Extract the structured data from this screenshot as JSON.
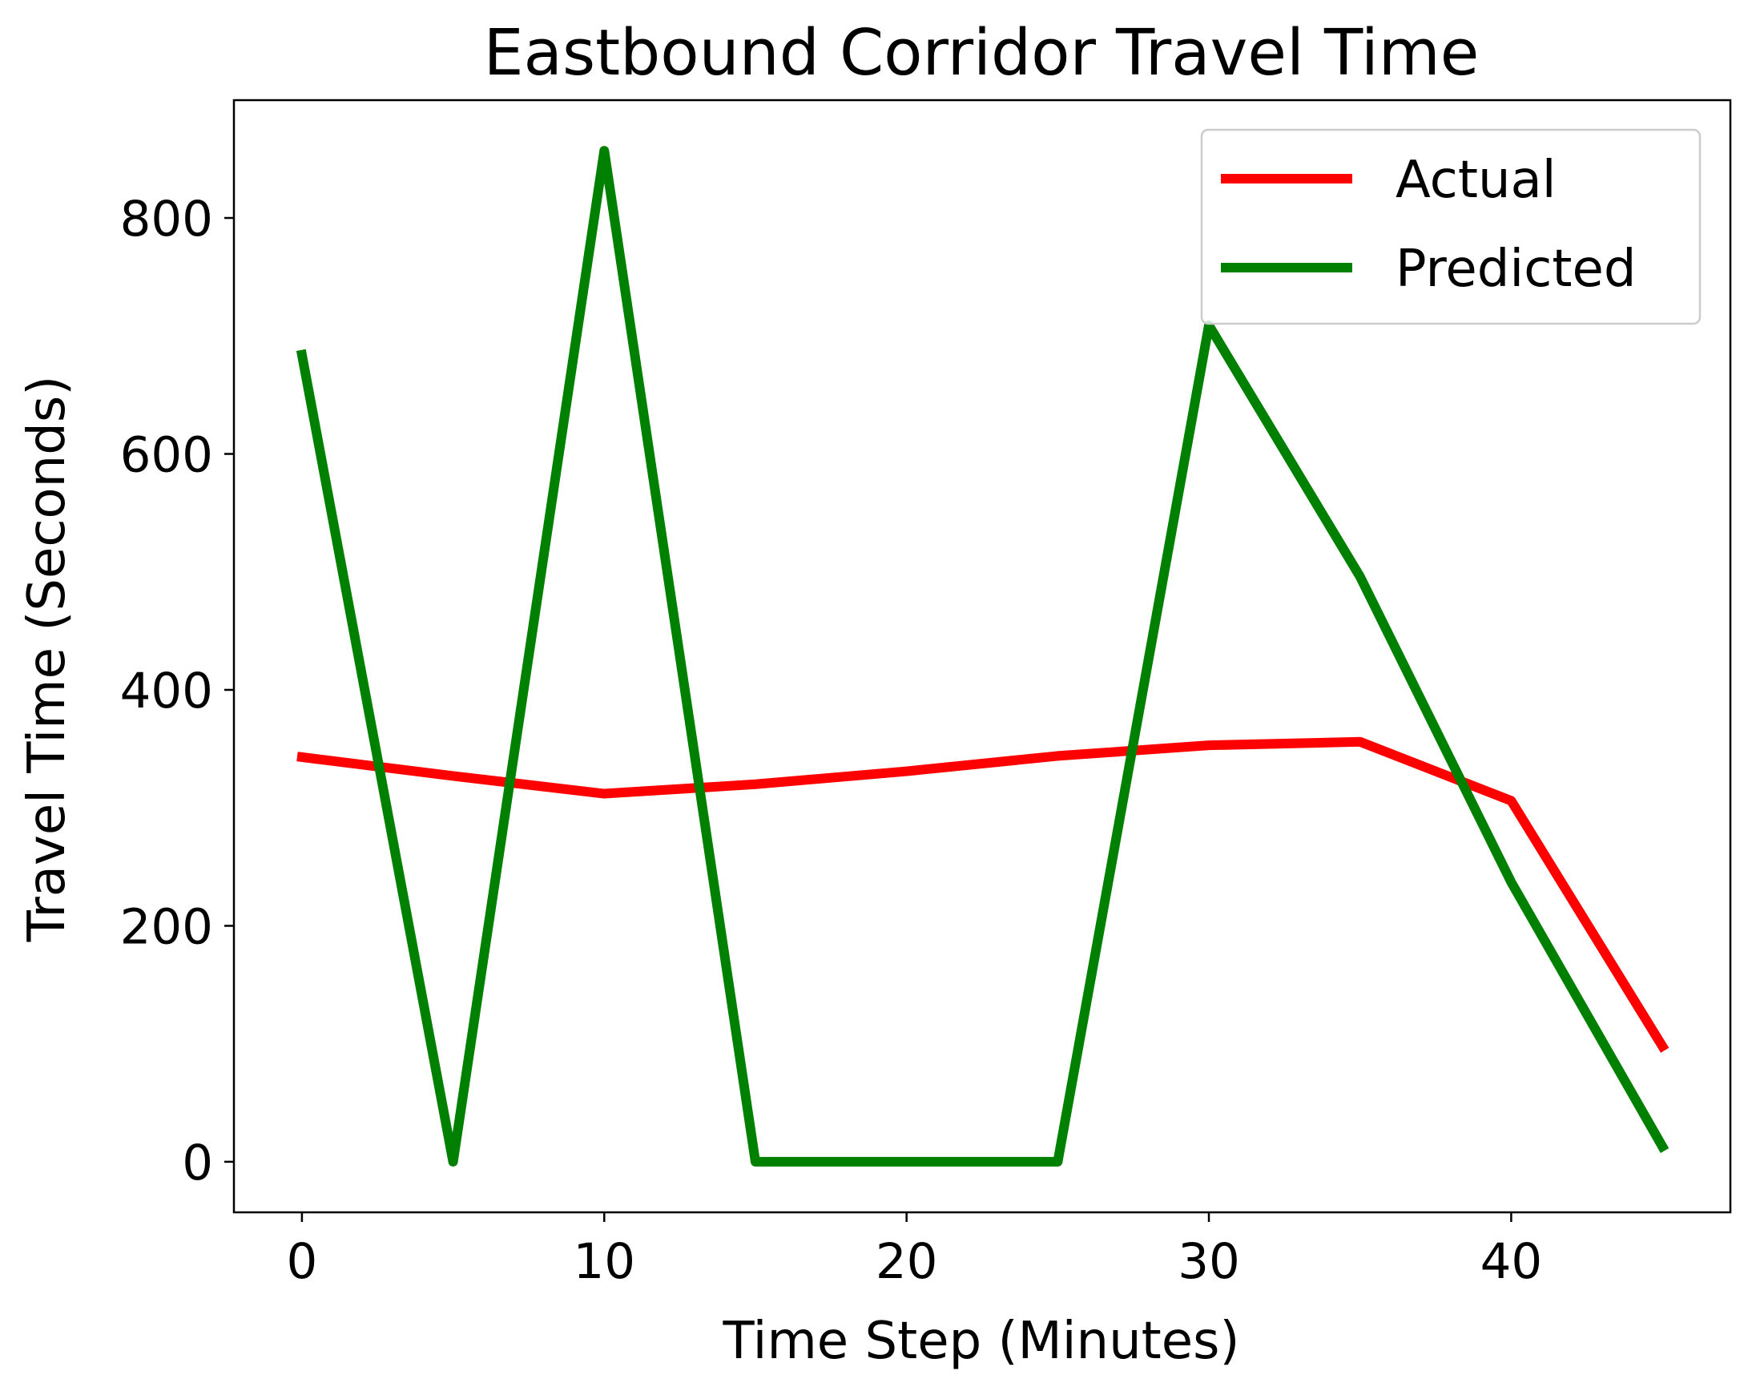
{
  "chart_data": {
    "type": "line",
    "title": "Eastbound Corridor Travel Time",
    "xlabel": "Time Step (Minutes)",
    "ylabel": "Travel Time (Seconds)",
    "x": [
      0,
      5,
      10,
      15,
      20,
      25,
      30,
      35,
      40,
      45
    ],
    "series": [
      {
        "name": "Actual",
        "color": "#ff0000",
        "values": [
          343,
          327,
          312,
          320,
          331,
          344,
          353,
          356,
          306,
          98
        ]
      },
      {
        "name": "Predicted",
        "color": "#008000",
        "values": [
          684,
          0,
          857,
          0,
          0,
          0,
          709,
          496,
          237,
          13
        ]
      }
    ],
    "xlim": [
      -2.25,
      47.25
    ],
    "ylim": [
      -42.85,
      899.85
    ],
    "xticks": [
      0,
      10,
      20,
      30,
      40
    ],
    "yticks": [
      0,
      200,
      400,
      600,
      800
    ],
    "grid": false,
    "legend_position": "top-right"
  }
}
